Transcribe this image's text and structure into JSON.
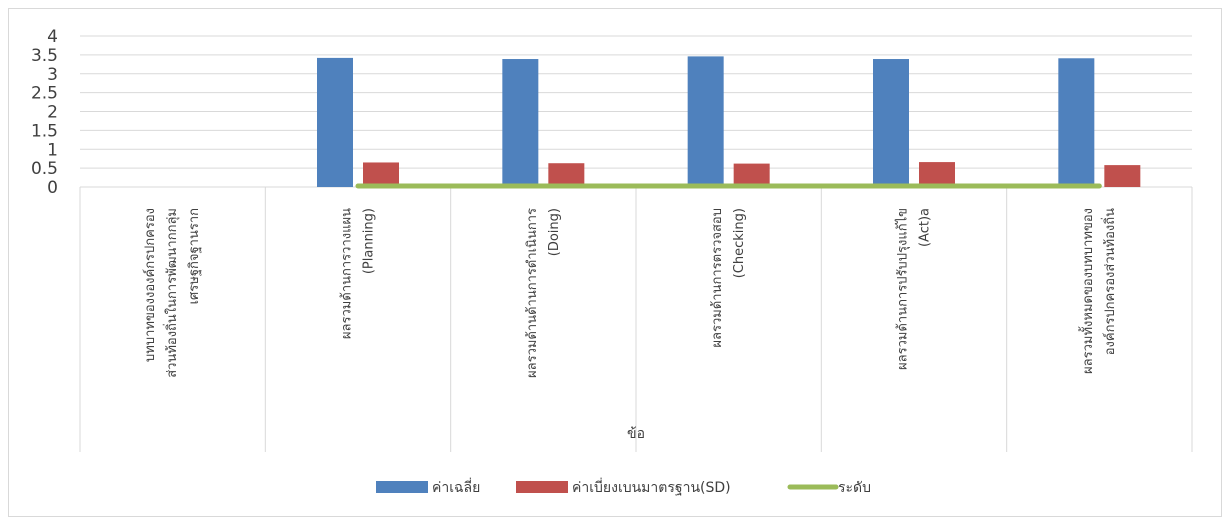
{
  "chart_data": {
    "type": "bar",
    "title": "",
    "xlabel": "ข้อ",
    "ylabel": "",
    "ylim": [
      0,
      4
    ],
    "yticks": [
      "0",
      "0.5",
      "1",
      "1.5",
      "2",
      "2.5",
      "3",
      "3.5",
      "4"
    ],
    "grid": true,
    "legend_position": "bottom",
    "categories": [
      [
        "บทบาทของงองค์กรปกครอง",
        "ส่วนท้องถิ่นในการพัฒนากกลุ่ม",
        "เศรษฐกิจฐานราก"
      ],
      [
        "ผลรวมด้านการวางแผน",
        "(Planning)"
      ],
      [
        "ผลรวมด้านด้านการดำเนินการ",
        "(Doing)"
      ],
      [
        "ผลรวมด้านการตรวจสอบ",
        "(Checking)"
      ],
      [
        "ผลรวมด้านการปรับปรุงแก้ไข",
        "(Act)a"
      ],
      [
        "ผลรวมทั้งหมดของบทบาทของ",
        "องค์กรปกครองส่วนท้องถิ่น"
      ]
    ],
    "series": [
      {
        "name": "ค่าเฉลี่ย",
        "type": "bar",
        "color": "#4f81bd",
        "values": [
          null,
          3.42,
          3.39,
          3.46,
          3.39,
          3.41
        ]
      },
      {
        "name": "ค่าเบี่ยงเบนมาตรฐาน(SD)",
        "type": "bar",
        "color": "#c0504d",
        "values": [
          null,
          0.65,
          0.63,
          0.62,
          0.66,
          0.58
        ]
      },
      {
        "name": "ระดับ",
        "type": "line",
        "color": "#9bbb59",
        "values": [
          null,
          0,
          0,
          0,
          0,
          0
        ]
      }
    ]
  }
}
